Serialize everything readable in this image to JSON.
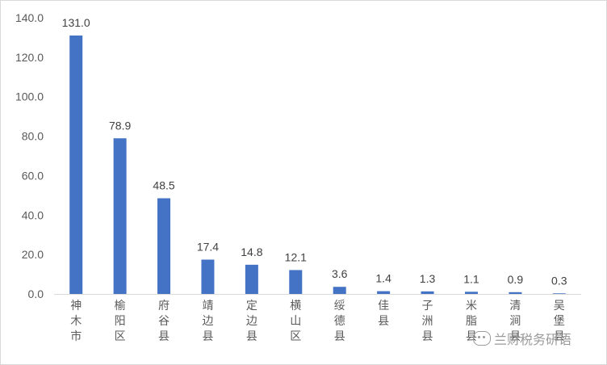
{
  "chart_data": {
    "type": "bar",
    "categories": [
      "神木市",
      "榆阳区",
      "府谷县",
      "靖边县",
      "定边县",
      "横山区",
      "绥德县",
      "佳县",
      "子洲县",
      "米脂县",
      "清涧县",
      "吴堡县"
    ],
    "values": [
      131.0,
      78.9,
      48.5,
      17.4,
      14.8,
      12.1,
      3.6,
      1.4,
      1.3,
      1.1,
      0.9,
      0.3
    ],
    "value_labels": [
      "131.0",
      "78.9",
      "48.5",
      "17.4",
      "14.8",
      "12.1",
      "3.6",
      "1.4",
      "1.3",
      "1.1",
      "0.9",
      "0.3"
    ],
    "yticks": [
      "0.0",
      "20.0",
      "40.0",
      "60.0",
      "80.0",
      "100.0",
      "120.0",
      "140.0"
    ],
    "ylim": [
      0,
      140
    ],
    "grid": false,
    "bar_color": "#4472c4",
    "title": "",
    "xlabel": "",
    "ylabel": ""
  },
  "watermark": {
    "icon": "wechat-icon",
    "text": "兰财税务研语"
  }
}
